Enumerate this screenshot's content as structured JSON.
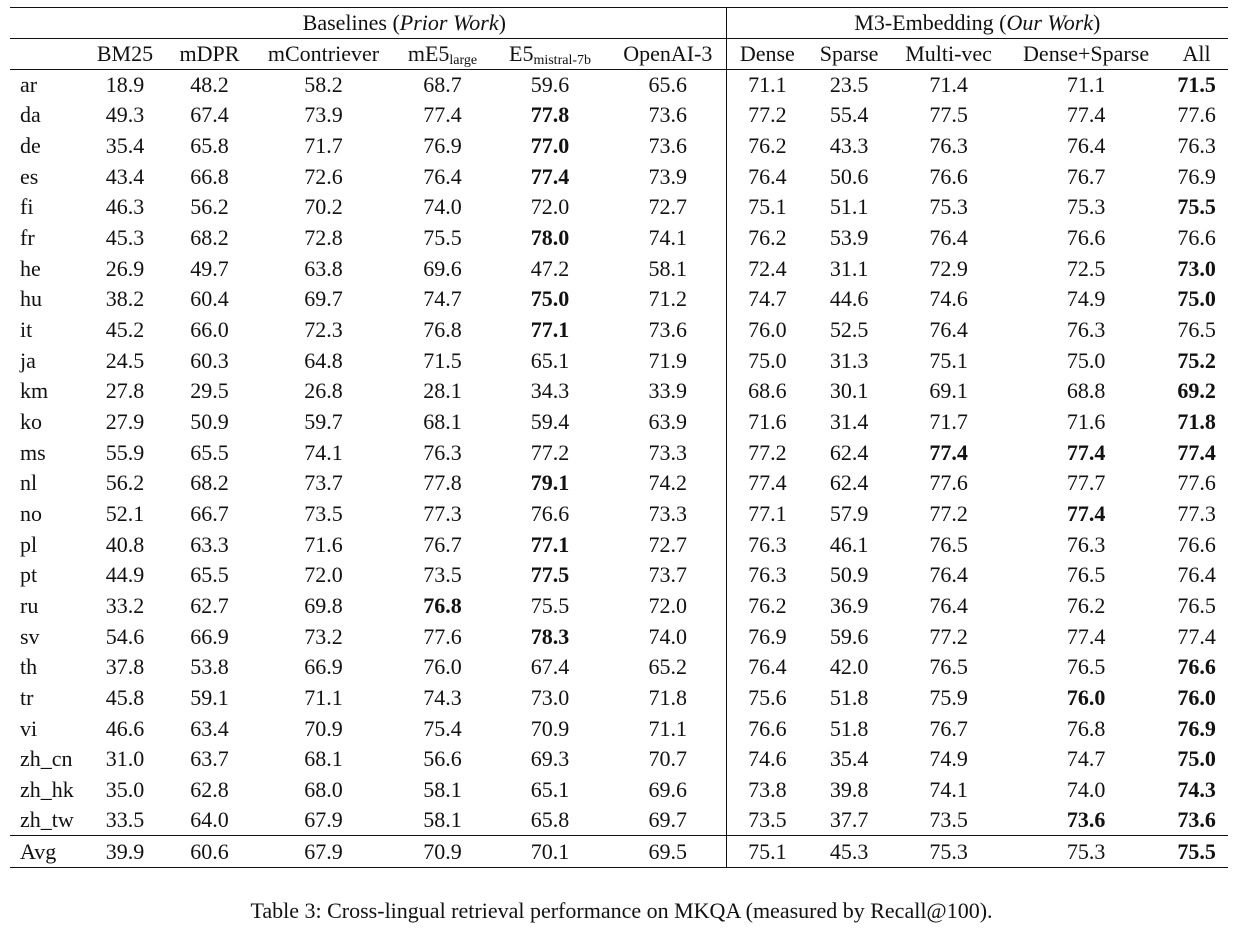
{
  "table": {
    "groups": [
      {
        "parts": [
          "Baselines (",
          "Prior Work",
          ")"
        ],
        "span": 6
      },
      {
        "parts": [
          "M3-Embedding (",
          "Our Work",
          ")"
        ],
        "span": 5
      }
    ],
    "columns": [
      {
        "text": "BM25"
      },
      {
        "text": "mDPR"
      },
      {
        "text": "mContriever"
      },
      {
        "text": "mE5",
        "sub": "large"
      },
      {
        "text": "E5",
        "sub": "mistral-7b"
      },
      {
        "text": "OpenAI-3"
      },
      {
        "text": "Dense"
      },
      {
        "text": "Sparse"
      },
      {
        "text": "Multi-vec"
      },
      {
        "text": "Dense+Sparse"
      },
      {
        "text": "All"
      }
    ],
    "rows": [
      {
        "label": "ar",
        "values": [
          "18.9",
          "48.2",
          "58.2",
          "68.7",
          "59.6",
          "65.6",
          "71.1",
          "23.5",
          "71.4",
          "71.1",
          "71.5"
        ],
        "bold": [
          10
        ]
      },
      {
        "label": "da",
        "values": [
          "49.3",
          "67.4",
          "73.9",
          "77.4",
          "77.8",
          "73.6",
          "77.2",
          "55.4",
          "77.5",
          "77.4",
          "77.6"
        ],
        "bold": [
          4
        ]
      },
      {
        "label": "de",
        "values": [
          "35.4",
          "65.8",
          "71.7",
          "76.9",
          "77.0",
          "73.6",
          "76.2",
          "43.3",
          "76.3",
          "76.4",
          "76.3"
        ],
        "bold": [
          4
        ]
      },
      {
        "label": "es",
        "values": [
          "43.4",
          "66.8",
          "72.6",
          "76.4",
          "77.4",
          "73.9",
          "76.4",
          "50.6",
          "76.6",
          "76.7",
          "76.9"
        ],
        "bold": [
          4
        ]
      },
      {
        "label": "fi",
        "values": [
          "46.3",
          "56.2",
          "70.2",
          "74.0",
          "72.0",
          "72.7",
          "75.1",
          "51.1",
          "75.3",
          "75.3",
          "75.5"
        ],
        "bold": [
          10
        ]
      },
      {
        "label": "fr",
        "values": [
          "45.3",
          "68.2",
          "72.8",
          "75.5",
          "78.0",
          "74.1",
          "76.2",
          "53.9",
          "76.4",
          "76.6",
          "76.6"
        ],
        "bold": [
          4
        ]
      },
      {
        "label": "he",
        "values": [
          "26.9",
          "49.7",
          "63.8",
          "69.6",
          "47.2",
          "58.1",
          "72.4",
          "31.1",
          "72.9",
          "72.5",
          "73.0"
        ],
        "bold": [
          10
        ]
      },
      {
        "label": "hu",
        "values": [
          "38.2",
          "60.4",
          "69.7",
          "74.7",
          "75.0",
          "71.2",
          "74.7",
          "44.6",
          "74.6",
          "74.9",
          "75.0"
        ],
        "bold": [
          4,
          10
        ]
      },
      {
        "label": "it",
        "values": [
          "45.2",
          "66.0",
          "72.3",
          "76.8",
          "77.1",
          "73.6",
          "76.0",
          "52.5",
          "76.4",
          "76.3",
          "76.5"
        ],
        "bold": [
          4
        ]
      },
      {
        "label": "ja",
        "values": [
          "24.5",
          "60.3",
          "64.8",
          "71.5",
          "65.1",
          "71.9",
          "75.0",
          "31.3",
          "75.1",
          "75.0",
          "75.2"
        ],
        "bold": [
          10
        ]
      },
      {
        "label": "km",
        "values": [
          "27.8",
          "29.5",
          "26.8",
          "28.1",
          "34.3",
          "33.9",
          "68.6",
          "30.1",
          "69.1",
          "68.8",
          "69.2"
        ],
        "bold": [
          10
        ]
      },
      {
        "label": "ko",
        "values": [
          "27.9",
          "50.9",
          "59.7",
          "68.1",
          "59.4",
          "63.9",
          "71.6",
          "31.4",
          "71.7",
          "71.6",
          "71.8"
        ],
        "bold": [
          10
        ]
      },
      {
        "label": "ms",
        "values": [
          "55.9",
          "65.5",
          "74.1",
          "76.3",
          "77.2",
          "73.3",
          "77.2",
          "62.4",
          "77.4",
          "77.4",
          "77.4"
        ],
        "bold": [
          8,
          9,
          10
        ]
      },
      {
        "label": "nl",
        "values": [
          "56.2",
          "68.2",
          "73.7",
          "77.8",
          "79.1",
          "74.2",
          "77.4",
          "62.4",
          "77.6",
          "77.7",
          "77.6"
        ],
        "bold": [
          4
        ]
      },
      {
        "label": "no",
        "values": [
          "52.1",
          "66.7",
          "73.5",
          "77.3",
          "76.6",
          "73.3",
          "77.1",
          "57.9",
          "77.2",
          "77.4",
          "77.3"
        ],
        "bold": [
          9
        ]
      },
      {
        "label": "pl",
        "values": [
          "40.8",
          "63.3",
          "71.6",
          "76.7",
          "77.1",
          "72.7",
          "76.3",
          "46.1",
          "76.5",
          "76.3",
          "76.6"
        ],
        "bold": [
          4
        ]
      },
      {
        "label": "pt",
        "values": [
          "44.9",
          "65.5",
          "72.0",
          "73.5",
          "77.5",
          "73.7",
          "76.3",
          "50.9",
          "76.4",
          "76.5",
          "76.4"
        ],
        "bold": [
          4
        ]
      },
      {
        "label": "ru",
        "values": [
          "33.2",
          "62.7",
          "69.8",
          "76.8",
          "75.5",
          "72.0",
          "76.2",
          "36.9",
          "76.4",
          "76.2",
          "76.5"
        ],
        "bold": [
          3
        ]
      },
      {
        "label": "sv",
        "values": [
          "54.6",
          "66.9",
          "73.2",
          "77.6",
          "78.3",
          "74.0",
          "76.9",
          "59.6",
          "77.2",
          "77.4",
          "77.4"
        ],
        "bold": [
          4
        ]
      },
      {
        "label": "th",
        "values": [
          "37.8",
          "53.8",
          "66.9",
          "76.0",
          "67.4",
          "65.2",
          "76.4",
          "42.0",
          "76.5",
          "76.5",
          "76.6"
        ],
        "bold": [
          10
        ]
      },
      {
        "label": "tr",
        "values": [
          "45.8",
          "59.1",
          "71.1",
          "74.3",
          "73.0",
          "71.8",
          "75.6",
          "51.8",
          "75.9",
          "76.0",
          "76.0"
        ],
        "bold": [
          9,
          10
        ]
      },
      {
        "label": "vi",
        "values": [
          "46.6",
          "63.4",
          "70.9",
          "75.4",
          "70.9",
          "71.1",
          "76.6",
          "51.8",
          "76.7",
          "76.8",
          "76.9"
        ],
        "bold": [
          10
        ]
      },
      {
        "label": "zh_cn",
        "values": [
          "31.0",
          "63.7",
          "68.1",
          "56.6",
          "69.3",
          "70.7",
          "74.6",
          "35.4",
          "74.9",
          "74.7",
          "75.0"
        ],
        "bold": [
          10
        ]
      },
      {
        "label": "zh_hk",
        "values": [
          "35.0",
          "62.8",
          "68.0",
          "58.1",
          "65.1",
          "69.6",
          "73.8",
          "39.8",
          "74.1",
          "74.0",
          "74.3"
        ],
        "bold": [
          10
        ]
      },
      {
        "label": "zh_tw",
        "values": [
          "33.5",
          "64.0",
          "67.9",
          "58.1",
          "65.8",
          "69.7",
          "73.5",
          "37.7",
          "73.5",
          "73.6",
          "73.6"
        ],
        "bold": [
          9,
          10
        ]
      }
    ],
    "average": {
      "label": "Avg",
      "values": [
        "39.9",
        "60.6",
        "67.9",
        "70.9",
        "70.1",
        "69.5",
        "75.1",
        "45.3",
        "75.3",
        "75.3",
        "75.5"
      ],
      "bold": [
        10
      ]
    }
  },
  "caption": "Table 3: Cross-lingual retrieval performance on MKQA (measured by Recall@100)."
}
